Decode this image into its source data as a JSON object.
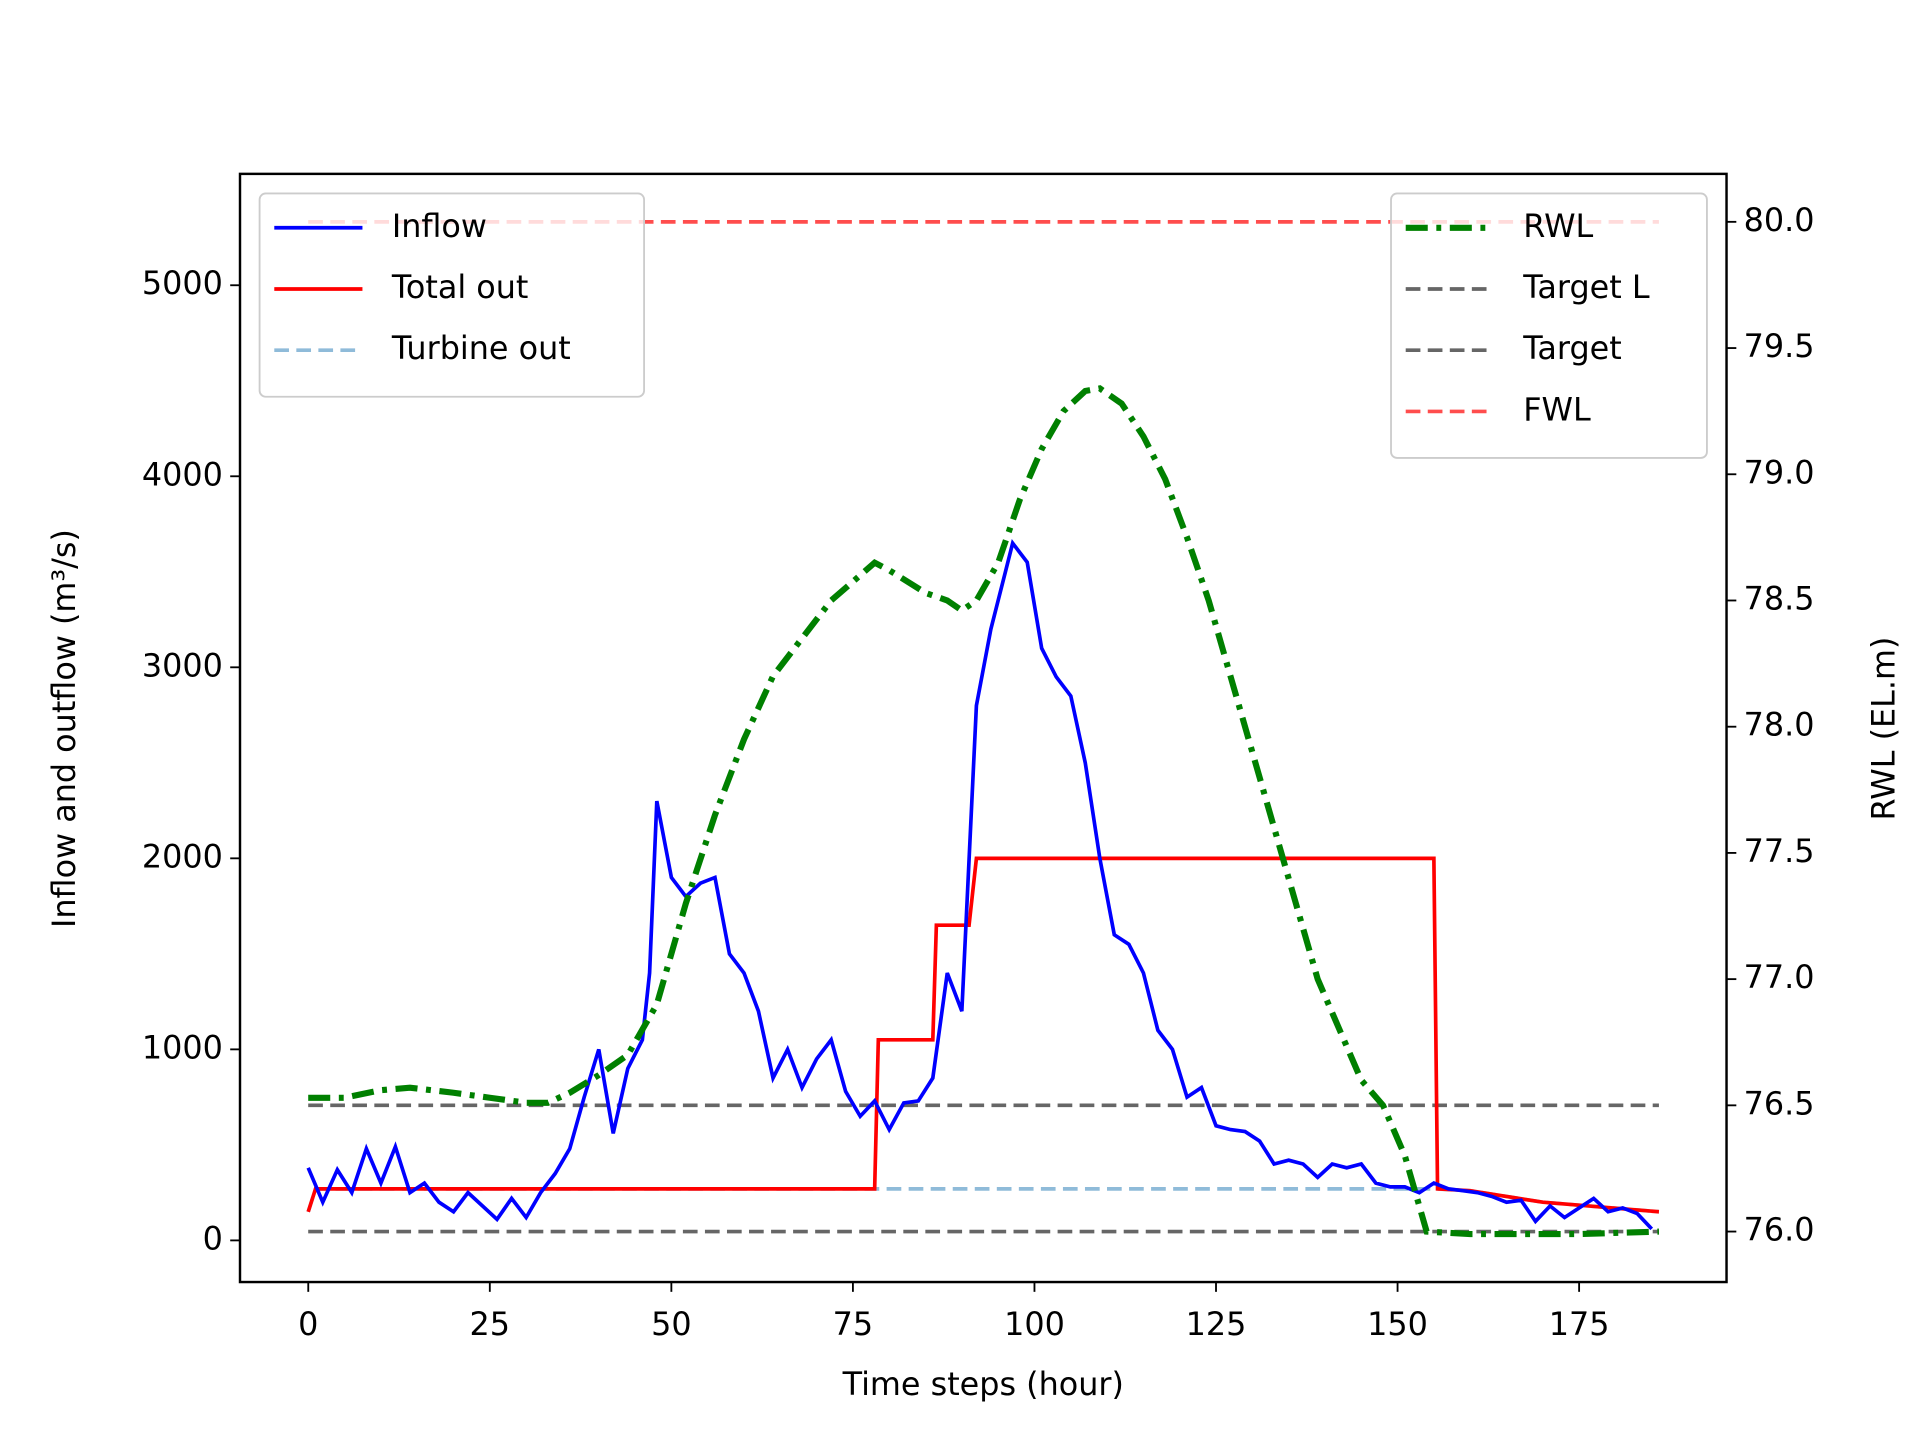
{
  "chart_data": {
    "type": "line",
    "xlabel": "Time steps (hour)",
    "ylabel": "Inflow and outflow (m³/s)",
    "y2label": "RWL (EL.m)",
    "xlim": [
      -9.4,
      195.3
    ],
    "ylim": [
      -218,
      5583
    ],
    "y2lim": [
      75.8,
      80.19
    ],
    "xticks": [
      0,
      25,
      50,
      75,
      100,
      125,
      150,
      175
    ],
    "yticks": [
      0,
      1000,
      2000,
      3000,
      4000,
      5000
    ],
    "y2ticks": [
      {
        "value": 76,
        "label": "76.0"
      },
      76.5,
      {
        "value": 77,
        "label": "77.0"
      },
      77.5,
      {
        "value": 78,
        "label": "78.0"
      },
      78.5,
      {
        "value": 79,
        "label": "79.0"
      },
      79.5,
      {
        "value": 80,
        "label": "80.0"
      }
    ],
    "legend": "upper left",
    "legend2": "upper right",
    "series": [
      {
        "name": "Inflow",
        "color": "#0000ff",
        "dash": "solid",
        "width": 3,
        "x": [
          0,
          2,
          4,
          6,
          8,
          10,
          12,
          14,
          16,
          18,
          20,
          22,
          24,
          26,
          28,
          30,
          32,
          34,
          36,
          38,
          40,
          42,
          44,
          46,
          47,
          48,
          50,
          52,
          54,
          56,
          58,
          60,
          62,
          64,
          66,
          68,
          70,
          72,
          74,
          76,
          78,
          80,
          82,
          84,
          86,
          88,
          90,
          92,
          94,
          96,
          97,
          99,
          101,
          103,
          105,
          107,
          109,
          111,
          113,
          115,
          117,
          119,
          121,
          123,
          125,
          127,
          129,
          131,
          133,
          135,
          137,
          139,
          141,
          143,
          145,
          147,
          149,
          151,
          153,
          155,
          157,
          159,
          161,
          163,
          165,
          167,
          169,
          171,
          173,
          175,
          177,
          179,
          181,
          183,
          185
        ],
        "values": [
          380,
          200,
          370,
          250,
          480,
          300,
          490,
          250,
          300,
          200,
          150,
          250,
          180,
          110,
          220,
          120,
          250,
          350,
          480,
          750,
          1000,
          560,
          900,
          1050,
          1400,
          2300,
          1900,
          1800,
          1870,
          1900,
          1500,
          1400,
          1200,
          850,
          1000,
          800,
          950,
          1050,
          780,
          650,
          730,
          580,
          720,
          730,
          850,
          1400,
          1200,
          2800,
          3200,
          3500,
          3650,
          3550,
          3100,
          2950,
          2850,
          2500,
          2000,
          1600,
          1550,
          1400,
          1100,
          1000,
          750,
          800,
          600,
          580,
          570,
          520,
          400,
          420,
          400,
          330,
          400,
          380,
          400,
          300,
          280,
          280,
          250,
          300,
          270,
          260,
          250,
          230,
          200,
          210,
          100,
          180,
          120,
          170,
          220,
          150,
          170,
          140,
          60
        ]
      },
      {
        "name": "Total out",
        "color": "#ff0000",
        "dash": "solid",
        "width": 3,
        "x": [
          0,
          1,
          78,
          78.5,
          86,
          86.5,
          91,
          92,
          155,
          155.5,
          160,
          170,
          186
        ],
        "values": [
          150,
          270,
          270,
          1050,
          1050,
          1650,
          1650,
          2000,
          2000,
          270,
          260,
          200,
          150
        ]
      },
      {
        "name": "Turbine out",
        "color": "#8fbbd9",
        "dash": "dashed",
        "width": 3,
        "x": [
          0,
          1,
          155,
          160,
          170,
          186
        ],
        "values": [
          150,
          270,
          270,
          260,
          200,
          150
        ]
      },
      {
        "name": "RWL",
        "color": "#008000",
        "dash": "dashdot",
        "width": 5,
        "axis": "y2",
        "x": [
          0,
          5,
          10,
          14,
          20,
          25,
          30,
          33,
          36,
          40,
          44,
          48,
          52,
          56,
          60,
          64,
          68,
          72,
          76,
          78,
          80,
          85,
          88,
          90,
          92,
          95,
          98,
          101,
          104,
          107,
          109,
          112,
          115,
          118,
          121,
          124,
          127,
          130,
          133,
          136,
          139,
          142,
          145,
          148,
          151,
          154,
          160,
          175,
          186
        ],
        "values": [
          76.53,
          76.53,
          76.56,
          76.57,
          76.55,
          76.53,
          76.51,
          76.51,
          76.55,
          76.62,
          76.7,
          76.9,
          77.3,
          77.65,
          77.95,
          78.2,
          78.35,
          78.5,
          78.6,
          78.65,
          78.62,
          78.53,
          78.5,
          78.46,
          78.5,
          78.65,
          78.9,
          79.1,
          79.25,
          79.33,
          79.34,
          79.28,
          79.15,
          78.98,
          78.75,
          78.5,
          78.2,
          77.9,
          77.6,
          77.3,
          77.0,
          76.8,
          76.6,
          76.5,
          76.3,
          76.0,
          75.99,
          75.99,
          76.0
        ]
      },
      {
        "name": "Target L",
        "color": "#666666",
        "dash": "dashed",
        "width": 3,
        "axis": "y2",
        "x": [
          0,
          186
        ],
        "values": [
          76.0,
          76.0
        ]
      },
      {
        "name": "Target",
        "color": "#666666",
        "dash": "dashed",
        "width": 3,
        "axis": "y2",
        "x": [
          0,
          186
        ],
        "values": [
          76.5,
          76.5
        ]
      },
      {
        "name": "FWL",
        "color": "#ff4d4d",
        "dash": "dashed",
        "width": 3,
        "axis": "y2",
        "x": [
          0,
          186
        ],
        "values": [
          80.0,
          80.0
        ]
      }
    ]
  }
}
